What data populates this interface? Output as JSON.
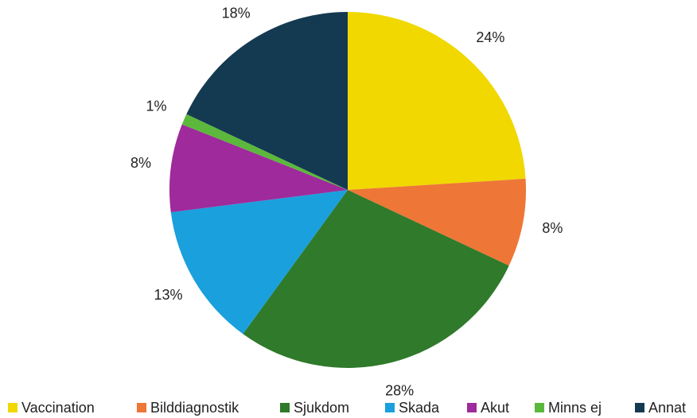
{
  "chart_data": {
    "type": "pie",
    "categories": [
      "Vaccination",
      "Bilddiagnostik",
      "Sjukdom",
      "Skada",
      "Akut",
      "Minns ej",
      "Annat"
    ],
    "values": [
      24,
      8,
      28,
      13,
      8,
      1,
      18
    ],
    "value_labels": [
      "24%",
      "8%",
      "28%",
      "13%",
      "8%",
      "1%",
      "18%"
    ],
    "colors": [
      "#f0d800",
      "#ee7636",
      "#2f7a2b",
      "#1aa0dc",
      "#9e2a9c",
      "#5cb83c",
      "#143a52"
    ],
    "legend": "bottom"
  }
}
